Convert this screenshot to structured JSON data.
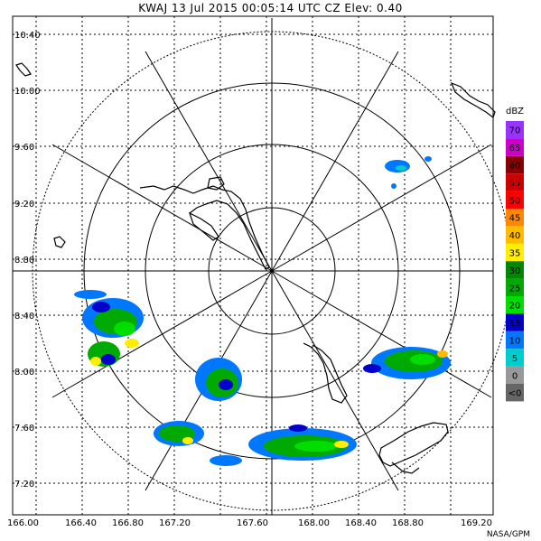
{
  "header": {
    "title": "KWAJ  13 Jul 2015 00:05:14 UTC  CZ  Elev: 0.40"
  },
  "lat_labels": [
    "10.40",
    "10.00",
    "9.60",
    "9.20",
    "8.80",
    "8.40",
    "8.00",
    "7.60",
    "7.20"
  ],
  "lon_labels": [
    "166.00",
    "166.40",
    "166.80",
    "167.20",
    "167.60",
    "168.00",
    "168.40",
    "168.80",
    "169.20"
  ],
  "colorbar": {
    "unit": "dBZ",
    "levels": [
      {
        "label": "70",
        "color": "#9933ff"
      },
      {
        "label": "65",
        "color": "#cc00cc"
      },
      {
        "label": "60",
        "color": "#880000"
      },
      {
        "label": "55",
        "color": "#cc0000"
      },
      {
        "label": "50",
        "color": "#ff0000"
      },
      {
        "label": "45",
        "color": "#ff8800"
      },
      {
        "label": "40",
        "color": "#ffbb00"
      },
      {
        "label": "35",
        "color": "#ffee00"
      },
      {
        "label": "30",
        "color": "#008800"
      },
      {
        "label": "25",
        "color": "#00aa00"
      },
      {
        "label": "20",
        "color": "#00dd00"
      },
      {
        "label": "15",
        "color": "#0000cc"
      },
      {
        "label": "10",
        "color": "#0077ff"
      },
      {
        "label": "5",
        "color": "#00cccc"
      },
      {
        "label": "0",
        "color": "#999999"
      },
      {
        "label": "<0",
        "color": "#666666"
      }
    ]
  },
  "credit": "NASA/GPM"
}
